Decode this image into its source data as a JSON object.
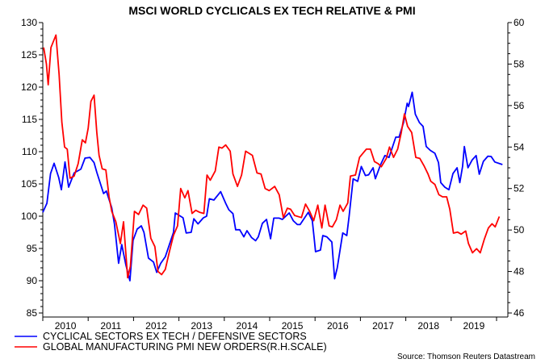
{
  "chart_data": {
    "type": "line",
    "title": "MSCI WORLD CYCLICALS EX TECH RELATIVE & PMI",
    "x_ticks": [
      "2010",
      "2011",
      "2012",
      "2013",
      "2014",
      "2015",
      "2016",
      "2017",
      "2018",
      "2019"
    ],
    "xlim": [
      2010,
      2020.25
    ],
    "left_axis": {
      "ylim": [
        85,
        130
      ],
      "tick_labels": [
        "85",
        "90",
        "95",
        "100",
        "105",
        "110",
        "115",
        "120",
        "125",
        "130"
      ]
    },
    "right_axis": {
      "ylim": [
        46,
        60
      ],
      "tick_labels": [
        "46",
        "48",
        "50",
        "52",
        "54",
        "56",
        "58",
        "60"
      ]
    },
    "grid": false,
    "legend_position": "bottom-left",
    "series": [
      {
        "name": "CYCLICAL SECTORS EX TECH / DEFENSIVE SECTORS",
        "axis": "left",
        "color": "#0000ff",
        "points": [
          [
            2010.0,
            100.6
          ],
          [
            2010.09,
            102.0
          ],
          [
            2010.17,
            106.6
          ],
          [
            2010.25,
            108.2
          ],
          [
            2010.35,
            106.0
          ],
          [
            2010.41,
            104.1
          ],
          [
            2010.49,
            108.4
          ],
          [
            2010.57,
            104.5
          ],
          [
            2010.69,
            106.7
          ],
          [
            2010.84,
            107.3
          ],
          [
            2010.93,
            109.0
          ],
          [
            2011.04,
            109.1
          ],
          [
            2011.13,
            108.3
          ],
          [
            2011.19,
            106.8
          ],
          [
            2011.34,
            103.5
          ],
          [
            2011.4,
            103.9
          ],
          [
            2011.52,
            101.3
          ],
          [
            2011.58,
            98.75
          ],
          [
            2011.67,
            92.7
          ],
          [
            2011.74,
            95.6
          ],
          [
            2011.83,
            92.5
          ],
          [
            2011.92,
            90.0
          ],
          [
            2011.99,
            96.25
          ],
          [
            2012.08,
            98.0
          ],
          [
            2012.17,
            98.5
          ],
          [
            2012.23,
            97.5
          ],
          [
            2012.33,
            93.5
          ],
          [
            2012.44,
            92.9
          ],
          [
            2012.51,
            91.3
          ],
          [
            2012.6,
            92.7
          ],
          [
            2012.7,
            93.7
          ],
          [
            2012.79,
            95.6
          ],
          [
            2012.88,
            97.5
          ],
          [
            2012.92,
            100.5
          ],
          [
            2013.09,
            99.75
          ],
          [
            2013.16,
            97.4
          ],
          [
            2013.27,
            97.5
          ],
          [
            2013.33,
            99.6
          ],
          [
            2013.42,
            98.8
          ],
          [
            2013.54,
            99.75
          ],
          [
            2013.61,
            100.0
          ],
          [
            2013.67,
            102.7
          ],
          [
            2013.77,
            102.5
          ],
          [
            2013.92,
            103.8
          ],
          [
            2014.03,
            102.0
          ],
          [
            2014.1,
            101.0
          ],
          [
            2014.19,
            100.4
          ],
          [
            2014.25,
            97.9
          ],
          [
            2014.34,
            97.9
          ],
          [
            2014.43,
            96.8
          ],
          [
            2014.5,
            97.75
          ],
          [
            2014.6,
            96.7
          ],
          [
            2014.69,
            96.2
          ],
          [
            2014.75,
            96.8
          ],
          [
            2014.84,
            98.9
          ],
          [
            2014.93,
            99.5
          ],
          [
            2015.02,
            96.5
          ],
          [
            2015.09,
            99.7
          ],
          [
            2015.21,
            99.7
          ],
          [
            2015.28,
            99.5
          ],
          [
            2015.43,
            100.5
          ],
          [
            2015.52,
            99.3
          ],
          [
            2015.61,
            98.7
          ],
          [
            2015.67,
            98.7
          ],
          [
            2015.85,
            100.6
          ],
          [
            2015.94,
            99.3
          ],
          [
            2015.98,
            96.6
          ],
          [
            2016.01,
            94.5
          ],
          [
            2016.12,
            94.75
          ],
          [
            2016.17,
            97.0
          ],
          [
            2016.26,
            96.8
          ],
          [
            2016.37,
            96.0
          ],
          [
            2016.43,
            90.3
          ],
          [
            2016.49,
            92.0
          ],
          [
            2016.61,
            97.4
          ],
          [
            2016.7,
            97.0
          ],
          [
            2016.75,
            100.0
          ],
          [
            2016.84,
            105.8
          ],
          [
            2016.94,
            105.4
          ],
          [
            2017.02,
            107.7
          ],
          [
            2017.11,
            106.3
          ],
          [
            2017.18,
            106.4
          ],
          [
            2017.28,
            107.5
          ],
          [
            2017.33,
            105.8
          ],
          [
            2017.44,
            107.9
          ],
          [
            2017.54,
            109.4
          ],
          [
            2017.63,
            109.1
          ],
          [
            2017.78,
            112.25
          ],
          [
            2017.85,
            112.25
          ],
          [
            2017.95,
            114.5
          ],
          [
            2018.03,
            117.5
          ],
          [
            2018.06,
            117.0
          ],
          [
            2018.14,
            119.2
          ],
          [
            2018.21,
            115.8
          ],
          [
            2018.3,
            114.5
          ],
          [
            2018.38,
            113.9
          ],
          [
            2018.45,
            110.8
          ],
          [
            2018.54,
            110.2
          ],
          [
            2018.64,
            109.75
          ],
          [
            2018.72,
            108.3
          ],
          [
            2018.77,
            105.2
          ],
          [
            2018.86,
            104.5
          ],
          [
            2018.95,
            104.1
          ],
          [
            2019.04,
            106.6
          ],
          [
            2019.13,
            107.5
          ],
          [
            2019.19,
            105.2
          ],
          [
            2019.25,
            107.7
          ],
          [
            2019.29,
            110.8
          ],
          [
            2019.37,
            107.5
          ],
          [
            2019.46,
            108.7
          ],
          [
            2019.55,
            109.4
          ],
          [
            2019.62,
            106.5
          ],
          [
            2019.71,
            108.5
          ],
          [
            2019.81,
            109.3
          ],
          [
            2019.88,
            109.25
          ],
          [
            2019.96,
            108.4
          ],
          [
            2020.13,
            108.0
          ]
        ]
      },
      {
        "name": "GLOBAL MANUFACTURING PMI NEW ORDERS(R.H.SCALE)",
        "axis": "right",
        "color": "#ff0000",
        "points": [
          [
            2010.02,
            58.8
          ],
          [
            2010.08,
            58.0
          ],
          [
            2010.12,
            57.0
          ],
          [
            2010.18,
            58.8
          ],
          [
            2010.29,
            59.4
          ],
          [
            2010.36,
            57.5
          ],
          [
            2010.42,
            55.2
          ],
          [
            2010.48,
            54.0
          ],
          [
            2010.54,
            53.9
          ],
          [
            2010.6,
            52.5
          ],
          [
            2010.69,
            52.6
          ],
          [
            2010.78,
            53.2
          ],
          [
            2010.87,
            54.35
          ],
          [
            2010.94,
            54.2
          ],
          [
            2011.0,
            54.9
          ],
          [
            2011.06,
            56.2
          ],
          [
            2011.13,
            56.5
          ],
          [
            2011.19,
            54.7
          ],
          [
            2011.24,
            53.6
          ],
          [
            2011.31,
            52.95
          ],
          [
            2011.39,
            52.9
          ],
          [
            2011.46,
            51.6
          ],
          [
            2011.52,
            50.9
          ],
          [
            2011.61,
            50.4
          ],
          [
            2011.71,
            49.35
          ],
          [
            2011.78,
            50.4
          ],
          [
            2011.87,
            47.7
          ],
          [
            2011.93,
            48.25
          ],
          [
            2012.02,
            50.9
          ],
          [
            2012.11,
            50.75
          ],
          [
            2012.21,
            51.2
          ],
          [
            2012.29,
            51.05
          ],
          [
            2012.38,
            49.6
          ],
          [
            2012.47,
            49.2
          ],
          [
            2012.54,
            48.0
          ],
          [
            2012.62,
            47.85
          ],
          [
            2012.7,
            48.1
          ],
          [
            2012.79,
            48.95
          ],
          [
            2012.88,
            49.75
          ],
          [
            2012.97,
            50.2
          ],
          [
            2013.04,
            52.0
          ],
          [
            2013.13,
            51.55
          ],
          [
            2013.2,
            51.9
          ],
          [
            2013.29,
            50.8
          ],
          [
            2013.37,
            50.95
          ],
          [
            2013.46,
            50.85
          ],
          [
            2013.55,
            50.8
          ],
          [
            2013.62,
            52.65
          ],
          [
            2013.69,
            52.4
          ],
          [
            2013.8,
            52.85
          ],
          [
            2013.88,
            54.0
          ],
          [
            2013.95,
            53.95
          ],
          [
            2014.03,
            54.1
          ],
          [
            2014.13,
            53.8
          ],
          [
            2014.19,
            52.7
          ],
          [
            2014.29,
            52.1
          ],
          [
            2014.38,
            52.65
          ],
          [
            2014.47,
            53.8
          ],
          [
            2014.62,
            53.6
          ],
          [
            2014.72,
            52.75
          ],
          [
            2014.81,
            52.7
          ],
          [
            2014.9,
            52.0
          ],
          [
            2014.99,
            51.9
          ],
          [
            2015.11,
            52.1
          ],
          [
            2015.21,
            51.7
          ],
          [
            2015.3,
            50.6
          ],
          [
            2015.39,
            51.05
          ],
          [
            2015.46,
            51.0
          ],
          [
            2015.55,
            50.7
          ],
          [
            2015.7,
            50.6
          ],
          [
            2015.79,
            51.25
          ],
          [
            2015.88,
            50.9
          ],
          [
            2015.97,
            50.45
          ],
          [
            2016.06,
            51.2
          ],
          [
            2016.15,
            50.1
          ],
          [
            2016.22,
            51.2
          ],
          [
            2016.31,
            50.2
          ],
          [
            2016.38,
            50.15
          ],
          [
            2016.47,
            50.5
          ],
          [
            2016.55,
            51.2
          ],
          [
            2016.62,
            50.9
          ],
          [
            2016.72,
            51.3
          ],
          [
            2016.78,
            52.6
          ],
          [
            2016.89,
            52.65
          ],
          [
            2016.98,
            53.5
          ],
          [
            2017.13,
            53.9
          ],
          [
            2017.22,
            53.9
          ],
          [
            2017.31,
            53.3
          ],
          [
            2017.39,
            53.2
          ],
          [
            2017.46,
            53.05
          ],
          [
            2017.57,
            53.45
          ],
          [
            2017.64,
            54.0
          ],
          [
            2017.73,
            53.5
          ],
          [
            2017.82,
            53.9
          ],
          [
            2017.9,
            54.7
          ],
          [
            2017.97,
            55.6
          ],
          [
            2018.04,
            55.0
          ],
          [
            2018.13,
            54.7
          ],
          [
            2018.22,
            53.5
          ],
          [
            2018.31,
            53.45
          ],
          [
            2018.4,
            53.1
          ],
          [
            2018.49,
            52.7
          ],
          [
            2018.55,
            52.35
          ],
          [
            2018.64,
            52.2
          ],
          [
            2018.73,
            51.7
          ],
          [
            2018.81,
            51.6
          ],
          [
            2018.9,
            51.6
          ],
          [
            2018.97,
            51.0
          ],
          [
            2019.05,
            49.85
          ],
          [
            2019.14,
            49.9
          ],
          [
            2019.22,
            49.8
          ],
          [
            2019.32,
            49.95
          ],
          [
            2019.38,
            49.35
          ],
          [
            2019.47,
            48.9
          ],
          [
            2019.56,
            49.1
          ],
          [
            2019.64,
            48.9
          ],
          [
            2019.73,
            49.55
          ],
          [
            2019.82,
            50.1
          ],
          [
            2019.9,
            50.3
          ],
          [
            2019.97,
            50.15
          ],
          [
            2020.06,
            50.65
          ]
        ]
      }
    ],
    "source": "Source: Thomson Reuters Datastream"
  }
}
